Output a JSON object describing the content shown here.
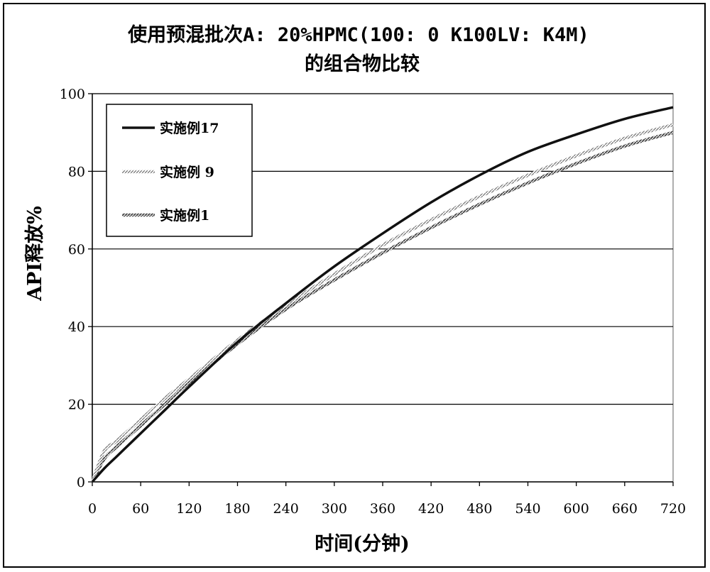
{
  "chart_data": {
    "type": "line",
    "title_line1": "使用预混批次A: 20%HPMC(100: 0 K100LV: K4M)",
    "title_line2": "的组合物比较",
    "xlabel": "时间(分钟)",
    "ylabel": "API释放%",
    "xlim": [
      0,
      720
    ],
    "ylim": [
      0,
      100
    ],
    "xticks": [
      0,
      60,
      120,
      180,
      240,
      300,
      360,
      420,
      480,
      540,
      600,
      660,
      720
    ],
    "yticks": [
      0,
      20,
      40,
      60,
      80,
      100
    ],
    "grid": "horizontal",
    "legend_position": "top-left",
    "x": [
      0,
      15,
      30,
      60,
      90,
      120,
      180,
      240,
      300,
      360,
      420,
      480,
      540,
      600,
      660,
      720
    ],
    "series": [
      {
        "name": "实施例17",
        "style": "solid-thick",
        "color": "#111111",
        "values": [
          0,
          3.5,
          6.5,
          12.5,
          18.5,
          24.5,
          36,
          46,
          55.5,
          64,
          72,
          79,
          85,
          89.5,
          93.5,
          96.5
        ]
      },
      {
        "name": "实施例 9",
        "style": "hatched-light",
        "color": "#8a8a8a",
        "values": [
          0,
          8,
          10.5,
          16,
          21.5,
          26.5,
          36.5,
          45.5,
          53.5,
          61,
          67.5,
          73.5,
          79,
          84,
          88.5,
          92
        ]
      },
      {
        "name": "实施例1",
        "style": "hatched-dark",
        "color": "#555555",
        "values": [
          0,
          6,
          9,
          14.5,
          20,
          25.5,
          35.5,
          44.5,
          52,
          59,
          65.5,
          71.5,
          77,
          82,
          86.5,
          90
        ]
      }
    ]
  }
}
